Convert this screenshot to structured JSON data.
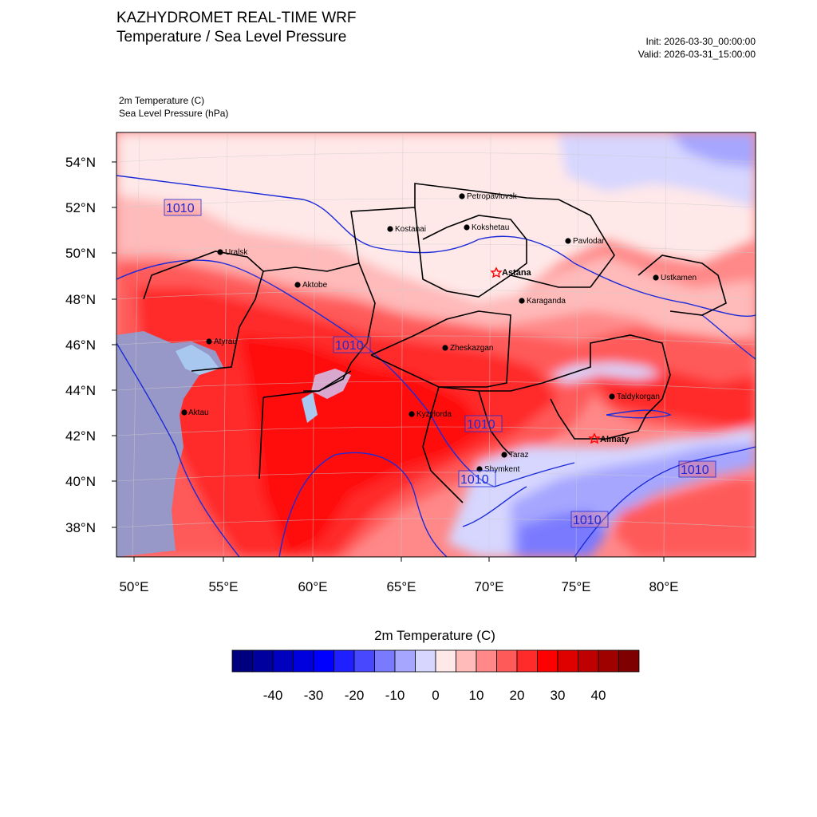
{
  "header": {
    "title": "KAZHYDROMET REAL-TIME WRF",
    "subtitle": "Temperature / Sea Level Pressure",
    "init": "Init: 2026-03-30_00:00:00",
    "valid": "Valid: 2026-03-31_15:00:00"
  },
  "fields": {
    "temperature": "2m Temperature   (C)",
    "pressure": "Sea Level Pressure   (hPa)"
  },
  "axes": {
    "lat_labels": [
      "54°N",
      "52°N",
      "50°N",
      "48°N",
      "46°N",
      "44°N",
      "42°N",
      "40°N",
      "38°N"
    ],
    "lon_labels": [
      "50°E",
      "55°E",
      "60°E",
      "65°E",
      "70°E",
      "75°E",
      "80°E"
    ]
  },
  "cities": [
    {
      "name": "Petropavlovsk",
      "lon": 69.1,
      "lat": 54.9,
      "capital": false
    },
    {
      "name": "Kostanai",
      "lon": 63.6,
      "lat": 53.2,
      "capital": false
    },
    {
      "name": "Kokshetau",
      "lon": 69.4,
      "lat": 53.3,
      "capital": false
    },
    {
      "name": "Pavlodar",
      "lon": 76.9,
      "lat": 52.3,
      "capital": false
    },
    {
      "name": "Uralsk",
      "lon": 51.4,
      "lat": 51.2,
      "capital": false
    },
    {
      "name": "Astana",
      "lon": 71.4,
      "lat": 51.2,
      "capital": true
    },
    {
      "name": "Aktobe",
      "lon": 57.2,
      "lat": 50.3,
      "capital": false
    },
    {
      "name": "Ustkamen",
      "lon": 82.6,
      "lat": 49.9,
      "capital": false
    },
    {
      "name": "Karaganda",
      "lon": 73.1,
      "lat": 49.8,
      "capital": false
    },
    {
      "name": "Atyrau",
      "lon": 51.9,
      "lat": 47.1,
      "capital": false
    },
    {
      "name": "Zheskazgan",
      "lon": 67.7,
      "lat": 47.8,
      "capital": false
    },
    {
      "name": "Taldykorgan",
      "lon": 78.4,
      "lat": 45.0,
      "capital": false
    },
    {
      "name": "Aktau",
      "lon": 51.2,
      "lat": 43.6,
      "capital": false
    },
    {
      "name": "Kyzylorda",
      "lon": 65.5,
      "lat": 44.8,
      "capital": false
    },
    {
      "name": "Almaty",
      "lon": 76.9,
      "lat": 43.2,
      "capital": true
    },
    {
      "name": "Taraz",
      "lon": 71.4,
      "lat": 42.9,
      "capital": false
    },
    {
      "name": "Shymkent",
      "lon": 69.6,
      "lat": 42.3,
      "capital": false
    }
  ],
  "isobar_labels": [
    "1010",
    "1010",
    "1010",
    "1010",
    "1010",
    "1010"
  ],
  "colorbar": {
    "title": "2m Temperature  (C)",
    "colors": [
      "#00007f",
      "#00009f",
      "#0000bf",
      "#0000df",
      "#0000ff",
      "#1f1fff",
      "#4848ff",
      "#7a7aff",
      "#a6a6ff",
      "#d6d6ff",
      "#ffe8e8",
      "#ffbaba",
      "#ff8888",
      "#ff5a5a",
      "#ff2a2a",
      "#ff0000",
      "#df0000",
      "#bf0000",
      "#9f0000",
      "#7f0000"
    ],
    "tick_labels": [
      "-40",
      "-30",
      "-20",
      "-10",
      "0",
      "10",
      "20",
      "30",
      "40"
    ]
  },
  "colors": {
    "isobar": "#1b2bd8",
    "border": "#000000",
    "capital_star": "#ff0000",
    "caspian": "#9898c8",
    "aral": "#a8c8f0"
  }
}
